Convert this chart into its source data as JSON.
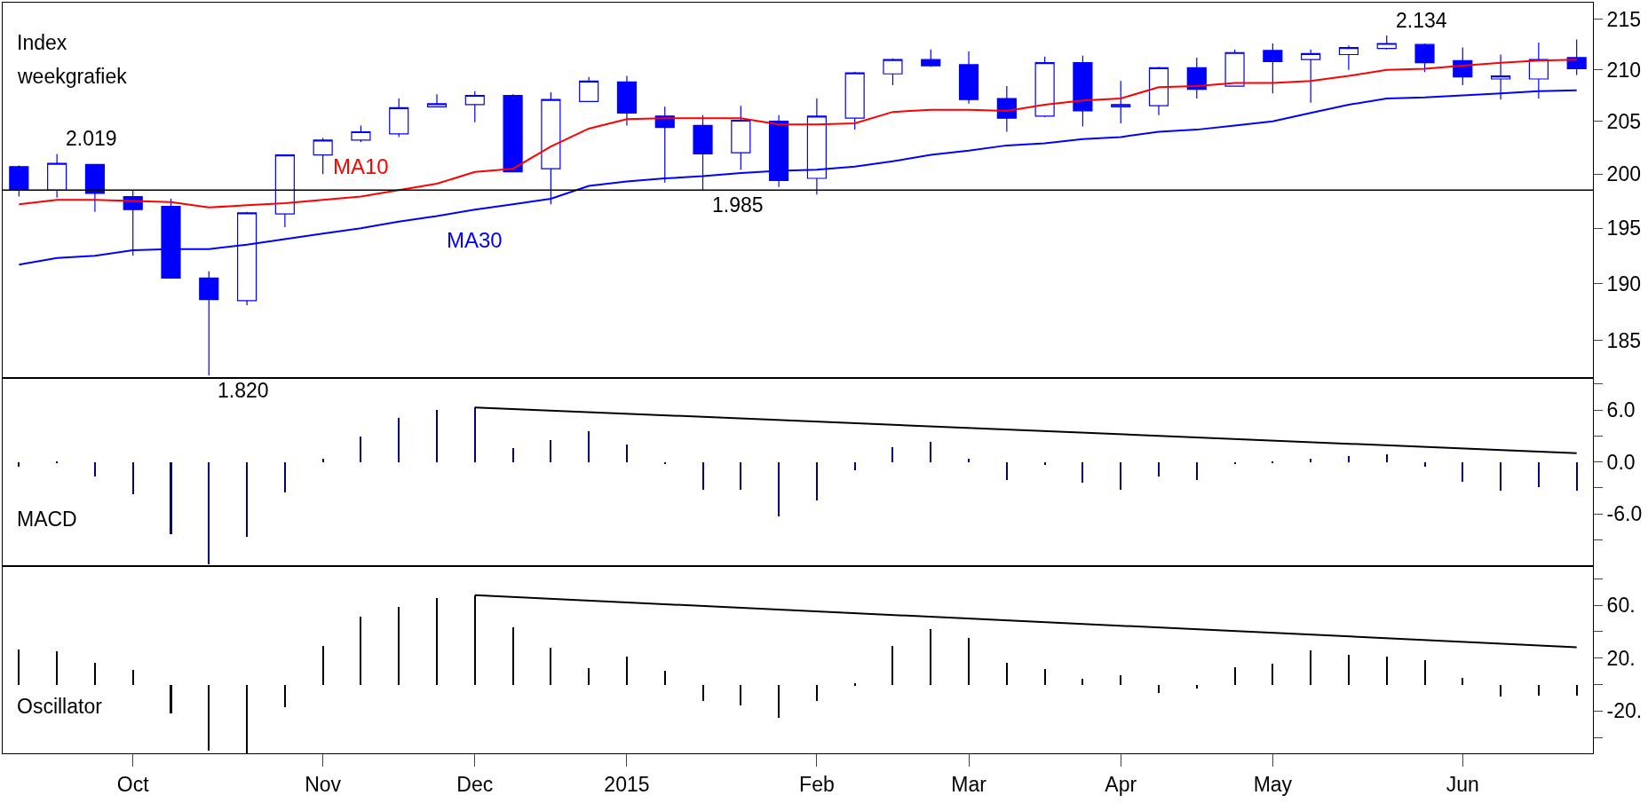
{
  "chart_data": [
    {
      "type": "candlestick",
      "title": "Index",
      "subtitle": "weekgrafiek",
      "log": true,
      "tick_labels": "y",
      "color": "#0000ff",
      "x": [
        "2014-09-12",
        "2014-09-19",
        "2014-09-26",
        "2014-10-03",
        "2014-10-10",
        "2014-10-17",
        "2014-10-24",
        "2014-10-31",
        "2014-11-07",
        "2014-11-14",
        "2014-11-21",
        "2014-11-28",
        "2014-12-05",
        "2014-12-12",
        "2014-12-19",
        "2014-12-26",
        "2015-01-02",
        "2015-01-09",
        "2015-01-16",
        "2015-01-23",
        "2015-01-30",
        "2015-02-06",
        "2015-02-13",
        "2015-02-20",
        "2015-02-27",
        "2015-03-06",
        "2015-03-13",
        "2015-03-20",
        "2015-03-27",
        "2015-04-03",
        "2015-04-10",
        "2015-04-17",
        "2015-04-24",
        "2015-05-01",
        "2015-05-08",
        "2015-05-15",
        "2015-05-22",
        "2015-05-29",
        "2015-06-05",
        "2015-06-12",
        "2015-06-19",
        "2015-06-26"
      ],
      "xlim": [
        "2014-09-09",
        "2015-06-29"
      ],
      "ylim": [
        181.8,
        216.7
      ],
      "yticks": [
        185,
        190,
        195,
        200,
        205,
        210,
        215
      ],
      "ohlc": [
        [
          200.7,
          200.8,
          197.9,
          198.5
        ],
        [
          198.5,
          201.9,
          197.8,
          201.0
        ],
        [
          200.9,
          200.9,
          196.5,
          198.2
        ],
        [
          197.9,
          198.5,
          192.5,
          196.7
        ],
        [
          197.0,
          197.7,
          190.5,
          190.5
        ],
        [
          190.5,
          191.1,
          182.0,
          188.6
        ],
        [
          188.5,
          196.5,
          188.1,
          196.4
        ],
        [
          196.3,
          201.8,
          195.1,
          201.8
        ],
        [
          201.8,
          203.4,
          200.0,
          203.2
        ],
        [
          203.2,
          204.6,
          203.0,
          204.0
        ],
        [
          203.8,
          207.2,
          203.5,
          206.3
        ],
        [
          206.4,
          207.6,
          206.4,
          206.7
        ],
        [
          206.6,
          207.9,
          204.9,
          207.5
        ],
        [
          207.5,
          207.6,
          200.2,
          200.2
        ],
        [
          200.5,
          207.8,
          197.2,
          207.1
        ],
        [
          206.9,
          209.3,
          206.9,
          208.9
        ],
        [
          208.8,
          209.4,
          204.6,
          205.8
        ],
        [
          205.5,
          206.4,
          199.2,
          204.4
        ],
        [
          204.6,
          205.6,
          198.5,
          201.9
        ],
        [
          202.0,
          206.5,
          200.4,
          205.1
        ],
        [
          205.0,
          205.6,
          198.8,
          199.4
        ],
        [
          199.6,
          207.2,
          198.1,
          205.5
        ],
        [
          205.3,
          209.8,
          204.2,
          209.7
        ],
        [
          209.6,
          211.1,
          208.5,
          211.0
        ],
        [
          211.0,
          212.0,
          210.3,
          210.4
        ],
        [
          210.5,
          211.8,
          206.7,
          207.1
        ],
        [
          207.2,
          208.4,
          204.0,
          205.3
        ],
        [
          205.5,
          211.3,
          205.4,
          210.7
        ],
        [
          210.7,
          211.4,
          204.5,
          206.0
        ],
        [
          206.4,
          208.9,
          204.8,
          206.6
        ],
        [
          206.5,
          210.3,
          205.6,
          210.2
        ],
        [
          210.2,
          211.2,
          207.2,
          208.1
        ],
        [
          208.4,
          212.0,
          208.4,
          211.7
        ],
        [
          211.9,
          212.6,
          207.7,
          210.8
        ],
        [
          211.0,
          212.0,
          206.8,
          211.6
        ],
        [
          211.5,
          212.4,
          210.0,
          212.2
        ],
        [
          212.1,
          213.4,
          212.0,
          212.6
        ],
        [
          212.5,
          212.6,
          209.8,
          210.7
        ],
        [
          210.9,
          212.2,
          208.5,
          209.3
        ],
        [
          209.1,
          211.5,
          207.1,
          209.4
        ],
        [
          209.1,
          212.7,
          207.2,
          211.0
        ],
        [
          211.2,
          213.0,
          209.5,
          210.1
        ]
      ],
      "series": [
        {
          "name": "MA10",
          "type": "line",
          "color": "#ff0000",
          "values": [
            197.2,
            197.6,
            197.6,
            197.5,
            197.4,
            196.9,
            197.1,
            197.3,
            197.6,
            197.9,
            198.5,
            199.1,
            200.2,
            200.5,
            202.6,
            204.3,
            205.2,
            205.3,
            205.3,
            205.3,
            204.7,
            204.7,
            204.8,
            205.9,
            206.1,
            206.1,
            206.0,
            206.6,
            207.0,
            207.2,
            208.3,
            208.4,
            208.7,
            208.7,
            208.9,
            209.4,
            210.0,
            210.1,
            210.4,
            210.7,
            210.9,
            211.0
          ]
        },
        {
          "name": "MA30",
          "type": "line",
          "color": "#0000ff",
          "values": [
            191.7,
            192.3,
            192.5,
            193.0,
            193.1,
            193.1,
            193.5,
            194.0,
            194.5,
            195.0,
            195.6,
            196.1,
            196.7,
            197.2,
            197.7,
            198.9,
            199.3,
            199.6,
            199.8,
            200.1,
            200.3,
            200.4,
            200.7,
            201.2,
            201.8,
            202.2,
            202.7,
            202.9,
            203.3,
            203.5,
            204.0,
            204.2,
            204.6,
            205.0,
            205.8,
            206.6,
            207.2,
            207.3,
            207.5,
            207.7,
            207.9,
            208.0
          ]
        }
      ],
      "ref_lines": [
        {
          "axis": "y",
          "value": 198.5,
          "color": "#000000"
        }
      ],
      "annotations": [
        {
          "text": "2.019",
          "x": "2014-09-19",
          "y": 201.9
        },
        {
          "text": "1.820",
          "x": "2014-10-17",
          "y": 182.0
        },
        {
          "text": "1.985",
          "x": "2015-01-16",
          "y": 198.5
        },
        {
          "text": "2.134",
          "x": "2015-05-22",
          "y": 213.4
        }
      ]
    },
    {
      "type": "bar",
      "tick_labels": "y",
      "annotations": [
        "MACD"
      ],
      "x": [
        "2014-09-12",
        "2014-09-19",
        "2014-09-26",
        "2014-10-03",
        "2014-10-10",
        "2014-10-17",
        "2014-10-24",
        "2014-10-31",
        "2014-11-07",
        "2014-11-14",
        "2014-11-21",
        "2014-11-28",
        "2014-12-05",
        "2014-12-12",
        "2014-12-19",
        "2014-12-26",
        "2015-01-02",
        "2015-01-09",
        "2015-01-16",
        "2015-01-23",
        "2015-01-30",
        "2015-02-06",
        "2015-02-13",
        "2015-02-20",
        "2015-02-27",
        "2015-03-06",
        "2015-03-13",
        "2015-03-20",
        "2015-03-27",
        "2015-04-03",
        "2015-04-10",
        "2015-04-17",
        "2015-04-24",
        "2015-05-01",
        "2015-05-08",
        "2015-05-15",
        "2015-05-22",
        "2015-05-29",
        "2015-06-05",
        "2015-06-12",
        "2015-06-19",
        "2015-06-26"
      ],
      "xlim": [
        "2014-09-09",
        "2015-06-29"
      ],
      "ylim": [
        -12.0,
        9.7
      ],
      "yticks": [
        {
          "value": 9,
          "label": null
        },
        {
          "value": 6,
          "label": "6.0"
        },
        {
          "value": 3,
          "label": null
        },
        {
          "value": 0,
          "label": "0.0"
        },
        {
          "value": -3,
          "label": null
        },
        {
          "value": -6,
          "label": "-6.0"
        },
        {
          "value": -9,
          "label": null
        }
      ],
      "series": [
        {
          "type": "bar",
          "color": "#000080",
          "values": [
            -0.6,
            -0.1,
            -1.7,
            -3.7,
            -8.4,
            -11.8,
            -8.7,
            -3.5,
            0.4,
            2.9,
            5.1,
            6.0,
            6.3,
            1.6,
            2.5,
            3.5,
            2.0,
            -0.3,
            -3.2,
            -3.2,
            -6.3,
            -4.5,
            -1.0,
            1.7,
            2.3,
            0.4,
            -2.1,
            -0.4,
            -2.4,
            -3.2,
            -1.7,
            -2.1,
            -0.3,
            -0.1,
            0.4,
            0.7,
            0.9,
            -0.6,
            -2.3,
            -3.3,
            -2.9,
            -3.3
          ]
        },
        {
          "type": "line",
          "color": "#000000",
          "x": [
            "2014-12-05",
            "2015-06-26"
          ],
          "values": [
            6.3,
            1.0
          ]
        }
      ]
    },
    {
      "type": "bar",
      "annotations": [
        "Oscillator"
      ],
      "x": [
        "2014-09-12",
        "2014-09-19",
        "2014-09-26",
        "2014-10-03",
        "2014-10-10",
        "2014-10-17",
        "2014-10-24",
        "2014-10-31",
        "2014-11-07",
        "2014-11-14",
        "2014-11-21",
        "2014-11-28",
        "2014-12-05",
        "2014-12-12",
        "2014-12-19",
        "2014-12-26",
        "2015-01-02",
        "2015-01-09",
        "2015-01-16",
        "2015-01-23",
        "2015-01-30",
        "2015-02-06",
        "2015-02-13",
        "2015-02-20",
        "2015-02-27",
        "2015-03-06",
        "2015-03-13",
        "2015-03-20",
        "2015-03-27",
        "2015-04-03",
        "2015-04-10",
        "2015-04-17",
        "2015-04-24",
        "2015-05-01",
        "2015-05-08",
        "2015-05-15",
        "2015-05-22",
        "2015-05-29",
        "2015-06-05",
        "2015-06-12",
        "2015-06-19",
        "2015-06-26"
      ],
      "xlim": [
        "2014-09-09",
        "2015-06-29"
      ],
      "xticks": [
        {
          "value": "2014-10-03",
          "label": "Oct"
        },
        {
          "value": "2014-11-07",
          "label": "Nov"
        },
        {
          "value": "2014-12-05",
          "label": "Dec"
        },
        {
          "value": "2015-01-02",
          "label": "2015"
        },
        {
          "value": "2015-02-06",
          "label": "Feb"
        },
        {
          "value": "2015-03-06",
          "label": "Mar"
        },
        {
          "value": "2015-04-03",
          "label": "Apr"
        },
        {
          "value": "2015-05-01",
          "label": "May"
        },
        {
          "value": "2015-06-05",
          "label": "Jun"
        }
      ],
      "ylim": [
        -52,
        90
      ],
      "yticks": [
        {
          "value": 80,
          "label": null
        },
        {
          "value": 60,
          "label": "60."
        },
        {
          "value": 40,
          "label": null
        },
        {
          "value": 20,
          "label": "20."
        },
        {
          "value": 0,
          "label": null
        },
        {
          "value": -20,
          "label": "-20."
        },
        {
          "value": -40,
          "label": null
        }
      ],
      "series": [
        {
          "type": "bar",
          "color": "#000000",
          "values": [
            26.9,
            25.7,
            16.5,
            11.3,
            -21.7,
            -49.5,
            -51.5,
            -16.9,
            29.4,
            51.9,
            59.1,
            65.5,
            67.6,
            43.4,
            28.1,
            12.5,
            21.7,
            10.5,
            -12.1,
            -15.7,
            -24.9,
            -12.1,
            1.2,
            29.6,
            42.5,
            35.6,
            17.0,
            12.1,
            4.9,
            7.7,
            -6.1,
            -2.4,
            13.4,
            16.2,
            26.3,
            23.1,
            21.5,
            19.0,
            5.3,
            -8.5,
            -8.1,
            -7.7
          ]
        },
        {
          "type": "line",
          "color": "#000000",
          "x": [
            "2014-12-05",
            "2015-06-26"
          ],
          "values": [
            67.6,
            28.3
          ]
        }
      ]
    }
  ]
}
